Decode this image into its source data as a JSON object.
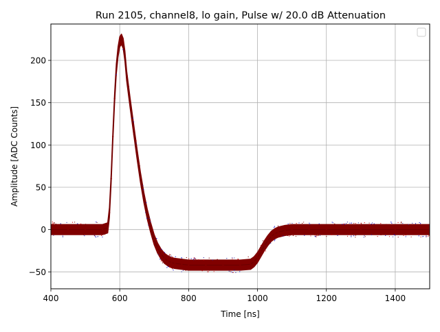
{
  "chart_data": {
    "type": "scatter",
    "title": "Run 2105, channel8, lo gain, Pulse w/ 20.0 dB Attenuation",
    "xlabel": "Time [ns]",
    "ylabel": "Amplitude [ADC Counts]",
    "xlim": [
      400,
      1500
    ],
    "ylim": [
      -70,
      243
    ],
    "xticks": [
      400,
      600,
      800,
      1000,
      1200,
      1400
    ],
    "yticks": [
      -50,
      0,
      50,
      100,
      150,
      200
    ],
    "xtick_labels": [
      "400",
      "600",
      "800",
      "1000",
      "1200",
      "1400"
    ],
    "ytick_labels": [
      "−50",
      "0",
      "50",
      "100",
      "150",
      "200"
    ],
    "grid": true,
    "legend": "top-right",
    "legend_entries": [],
    "band_halfwidth": 6,
    "series": [
      {
        "color": "#800000",
        "x": [
          400,
          450,
          500,
          550,
          565,
          570,
          575,
          580,
          585,
          590,
          595,
          600,
          605,
          610,
          615,
          620,
          630,
          640,
          650,
          660,
          670,
          680,
          690,
          700,
          710,
          720,
          730,
          740,
          750,
          760,
          780,
          800,
          850,
          900,
          950,
          980,
          990,
          1000,
          1010,
          1020,
          1030,
          1040,
          1050,
          1060,
          1080,
          1100,
          1150,
          1200,
          1300,
          1400,
          1500
        ],
        "y": [
          0,
          0,
          0,
          0,
          2,
          20,
          60,
          110,
          155,
          190,
          210,
          222,
          225,
          220,
          205,
          182,
          150,
          120,
          90,
          62,
          38,
          18,
          2,
          -12,
          -22,
          -29,
          -34,
          -37,
          -39,
          -40,
          -41,
          -42,
          -42,
          -42,
          -42,
          -41,
          -38,
          -33,
          -26,
          -19,
          -13,
          -8,
          -5,
          -3,
          -1,
          0,
          0,
          0,
          0,
          0,
          0
        ]
      }
    ]
  }
}
